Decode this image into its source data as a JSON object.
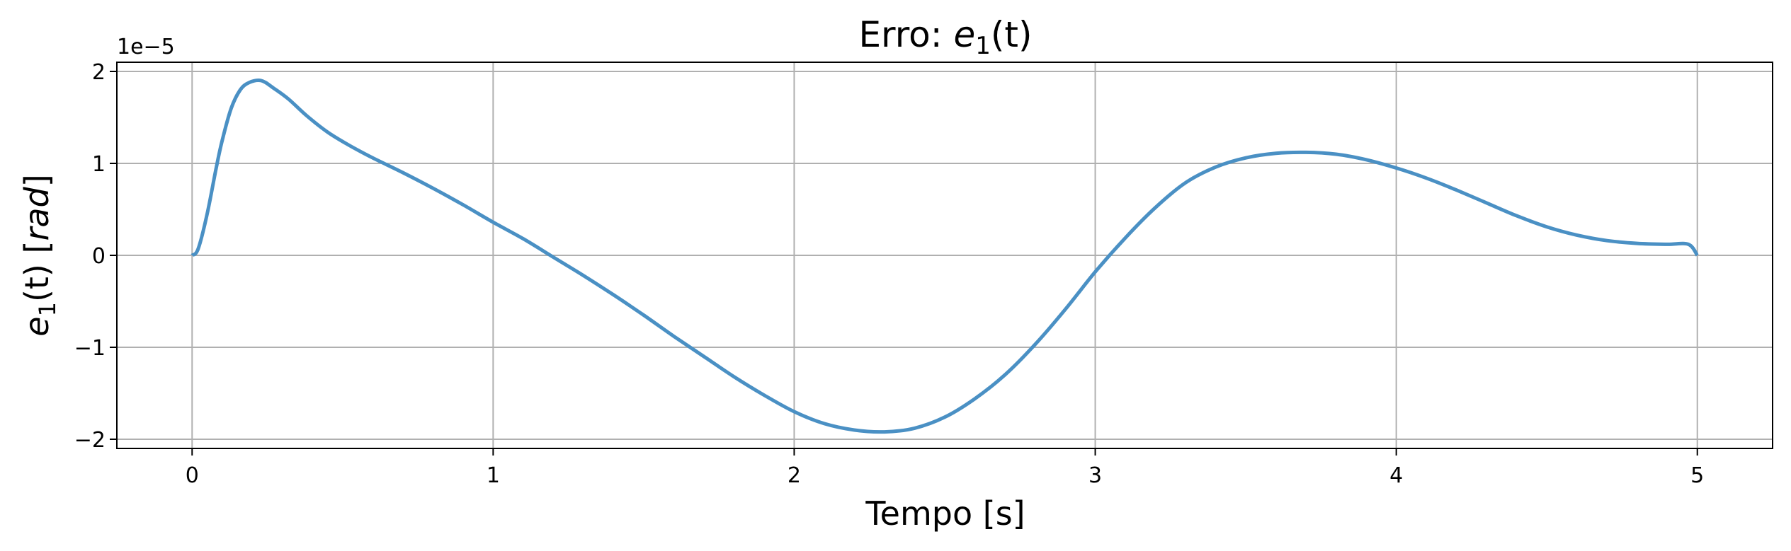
{
  "chart_data": {
    "type": "line",
    "title_prefix": "Erro: ",
    "title_math": "e",
    "title_sub": "1",
    "title_suffix": "(t)",
    "xlabel": "Tempo [s]",
    "ylabel_math": "e",
    "ylabel_sub": "1",
    "ylabel_suffix": "(t) [",
    "ylabel_unit": "rad",
    "ylabel_close": "]",
    "y_offset_label": "1e−5",
    "xlim": [
      -0.25,
      5.25
    ],
    "ylim": [
      -2.1,
      2.1
    ],
    "xticks": [
      0,
      1,
      2,
      3,
      4,
      5
    ],
    "xtick_labels": [
      "0",
      "1",
      "2",
      "3",
      "4",
      "5"
    ],
    "yticks": [
      -2,
      -1,
      0,
      1,
      2
    ],
    "ytick_labels": [
      "−2",
      "−1",
      "0",
      "1",
      "2"
    ],
    "grid": true,
    "line_color": "#4a90c4",
    "series": [
      {
        "x": [
          0,
          0.02,
          0.05,
          0.08,
          0.1,
          0.13,
          0.16,
          0.19,
          0.23,
          0.27,
          0.32,
          0.38,
          0.45,
          0.52,
          0.6,
          0.7,
          0.8,
          0.9,
          1.0,
          1.1,
          1.2,
          1.3,
          1.4,
          1.5,
          1.6,
          1.7,
          1.8,
          1.9,
          2.0,
          2.1,
          2.2,
          2.3,
          2.4,
          2.5,
          2.6,
          2.7,
          2.8,
          2.9,
          3.0,
          3.1,
          3.2,
          3.3,
          3.4,
          3.5,
          3.6,
          3.7,
          3.8,
          3.9,
          4.0,
          4.1,
          4.2,
          4.3,
          4.4,
          4.5,
          4.6,
          4.7,
          4.8,
          4.9,
          4.97,
          5.0
        ],
        "y": [
          0,
          0.07,
          0.45,
          0.95,
          1.25,
          1.6,
          1.8,
          1.88,
          1.9,
          1.82,
          1.7,
          1.52,
          1.34,
          1.2,
          1.06,
          0.9,
          0.73,
          0.55,
          0.36,
          0.18,
          -0.02,
          -0.22,
          -0.43,
          -0.65,
          -0.88,
          -1.1,
          -1.32,
          -1.52,
          -1.7,
          -1.83,
          -1.9,
          -1.92,
          -1.88,
          -1.76,
          -1.56,
          -1.3,
          -0.97,
          -0.59,
          -0.18,
          0.19,
          0.52,
          0.79,
          0.96,
          1.06,
          1.11,
          1.12,
          1.1,
          1.04,
          0.95,
          0.84,
          0.71,
          0.57,
          0.43,
          0.31,
          0.22,
          0.16,
          0.13,
          0.12,
          0.12,
          0
        ]
      }
    ]
  }
}
